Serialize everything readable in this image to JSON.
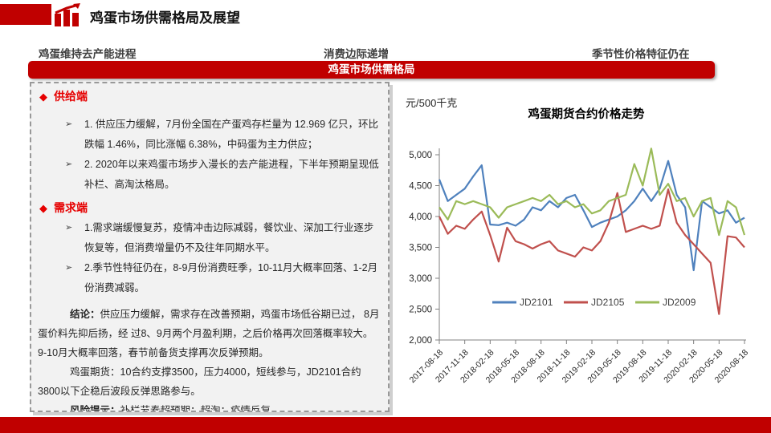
{
  "header": {
    "title": "鸡蛋市场供需格局及展望"
  },
  "subheaders": {
    "left": "鸡蛋维持去产能进程",
    "center": "消费边际递增",
    "right": "季节性价格特征仍在"
  },
  "banner": {
    "label": "鸡蛋市场供需格局"
  },
  "markers": {
    "diamond": "◆",
    "arrow": "➢"
  },
  "colors": {
    "accent": "#C00000",
    "section_heading": "#E60000",
    "series_blue": "#4F81BD",
    "series_red": "#C0504D",
    "series_green": "#9BBB59"
  },
  "panel": {
    "supply": {
      "heading": "供给端",
      "items": [
        "1. 供应压力缓解，7月份全国在产蛋鸡存栏量为 12.969 亿只，环比跌幅 1.46%，同比涨幅 6.38%，中码蛋为主力供应；",
        "2. 2020年以来鸡蛋市场步入漫长的去产能进程，下半年预期呈现低补栏、高淘汰格局。"
      ]
    },
    "demand": {
      "heading": "需求端",
      "items": [
        "1.需求端缓慢复苏，疫情冲击边际减弱，餐饮业、深加工行业逐步恢复等，但消费增量仍不及往年同期水平。",
        "2.季节性特征仍在，8-9月份消费旺季，10-11月大概率回落、1-2月份消费减弱。"
      ]
    },
    "conclusion": {
      "label": "结论：",
      "text": "供应压力缓解，需求存在改善预期，鸡蛋市场低谷期已过， 8月蛋价料先抑后扬，经 过8、9月两个月盈利期，之后价格再次回落概率较大。9-10月大概率回落，春节前备货支撑再次反弹预期。"
    },
    "futures": {
      "label": "鸡蛋期货：",
      "text": "10合约支撑3500，压力4000，短线参与，JD2101合约3800以下企稳后波段反弹思路参与。"
    },
    "risk": {
      "label": "风险提示：",
      "text": "补栏节奏超预期；超淘；疫情反复"
    }
  },
  "chart_data": {
    "type": "line",
    "title": "鸡蛋期货合约价格走势",
    "unit_label": "元/500千克",
    "grid": false,
    "legend_position": "inside-bottom",
    "ylim": [
      2000,
      5200
    ],
    "yticks": [
      2000,
      2500,
      3000,
      3500,
      4000,
      4500,
      5000
    ],
    "ytick_labels": [
      "2,000",
      "2,500",
      "3,000",
      "3,500",
      "4,000",
      "4,500",
      "5,000"
    ],
    "x": [
      "2017-08",
      "2017-09",
      "2017-10",
      "2017-11",
      "2017-12",
      "2018-01",
      "2018-02",
      "2018-03",
      "2018-04",
      "2018-05",
      "2018-06",
      "2018-07",
      "2018-08",
      "2018-09",
      "2018-10",
      "2018-11",
      "2018-12",
      "2019-01",
      "2019-02",
      "2019-03",
      "2019-04",
      "2019-05",
      "2019-06",
      "2019-07",
      "2019-08",
      "2019-09",
      "2019-10",
      "2019-11",
      "2019-12",
      "2020-01",
      "2020-02",
      "2020-03",
      "2020-04",
      "2020-05",
      "2020-06",
      "2020-07",
      "2020-08"
    ],
    "x_tick_every": 3,
    "x_tick_labels": [
      "2017-08-18",
      "2017-11-18",
      "2018-02-18",
      "2018-05-18",
      "2018-08-18",
      "2018-11-18",
      "2019-02-18",
      "2019-05-18",
      "2019-08-18",
      "2019-11-18",
      "2020-02-18",
      "2020-05-18",
      "2020-08-18"
    ],
    "series": [
      {
        "name": "JD2101",
        "color": "#4F81BD",
        "values": [
          4600,
          4250,
          4350,
          4450,
          4650,
          4830,
          3870,
          3860,
          3900,
          3850,
          3950,
          4150,
          4100,
          4250,
          4150,
          4300,
          4350,
          4100,
          3830,
          3900,
          3950,
          4000,
          4100,
          4250,
          4450,
          4250,
          4450,
          4900,
          4350,
          4150,
          3130,
          4250,
          4150,
          4050,
          4100,
          3900,
          3980
        ]
      },
      {
        "name": "JD2105",
        "color": "#C0504D",
        "values": [
          4000,
          3720,
          3850,
          3800,
          3950,
          4080,
          3700,
          3270,
          3820,
          3600,
          3550,
          3480,
          3550,
          3600,
          3450,
          3400,
          3350,
          3500,
          3450,
          3600,
          3900,
          4380,
          3750,
          3800,
          3850,
          3800,
          3850,
          4440,
          3900,
          3700,
          3550,
          3400,
          3250,
          2420,
          3680,
          3660,
          3500
        ]
      },
      {
        "name": "JD2009",
        "color": "#9BBB59",
        "values": [
          4150,
          3950,
          4250,
          4200,
          4250,
          4200,
          4150,
          3980,
          4150,
          4200,
          4250,
          4300,
          4250,
          4350,
          4200,
          4250,
          4150,
          4200,
          4050,
          4100,
          4250,
          4300,
          4350,
          4850,
          4500,
          5100,
          4350,
          4530,
          4250,
          4300,
          4000,
          4250,
          4300,
          3700,
          4250,
          4150,
          3700
        ]
      }
    ]
  }
}
